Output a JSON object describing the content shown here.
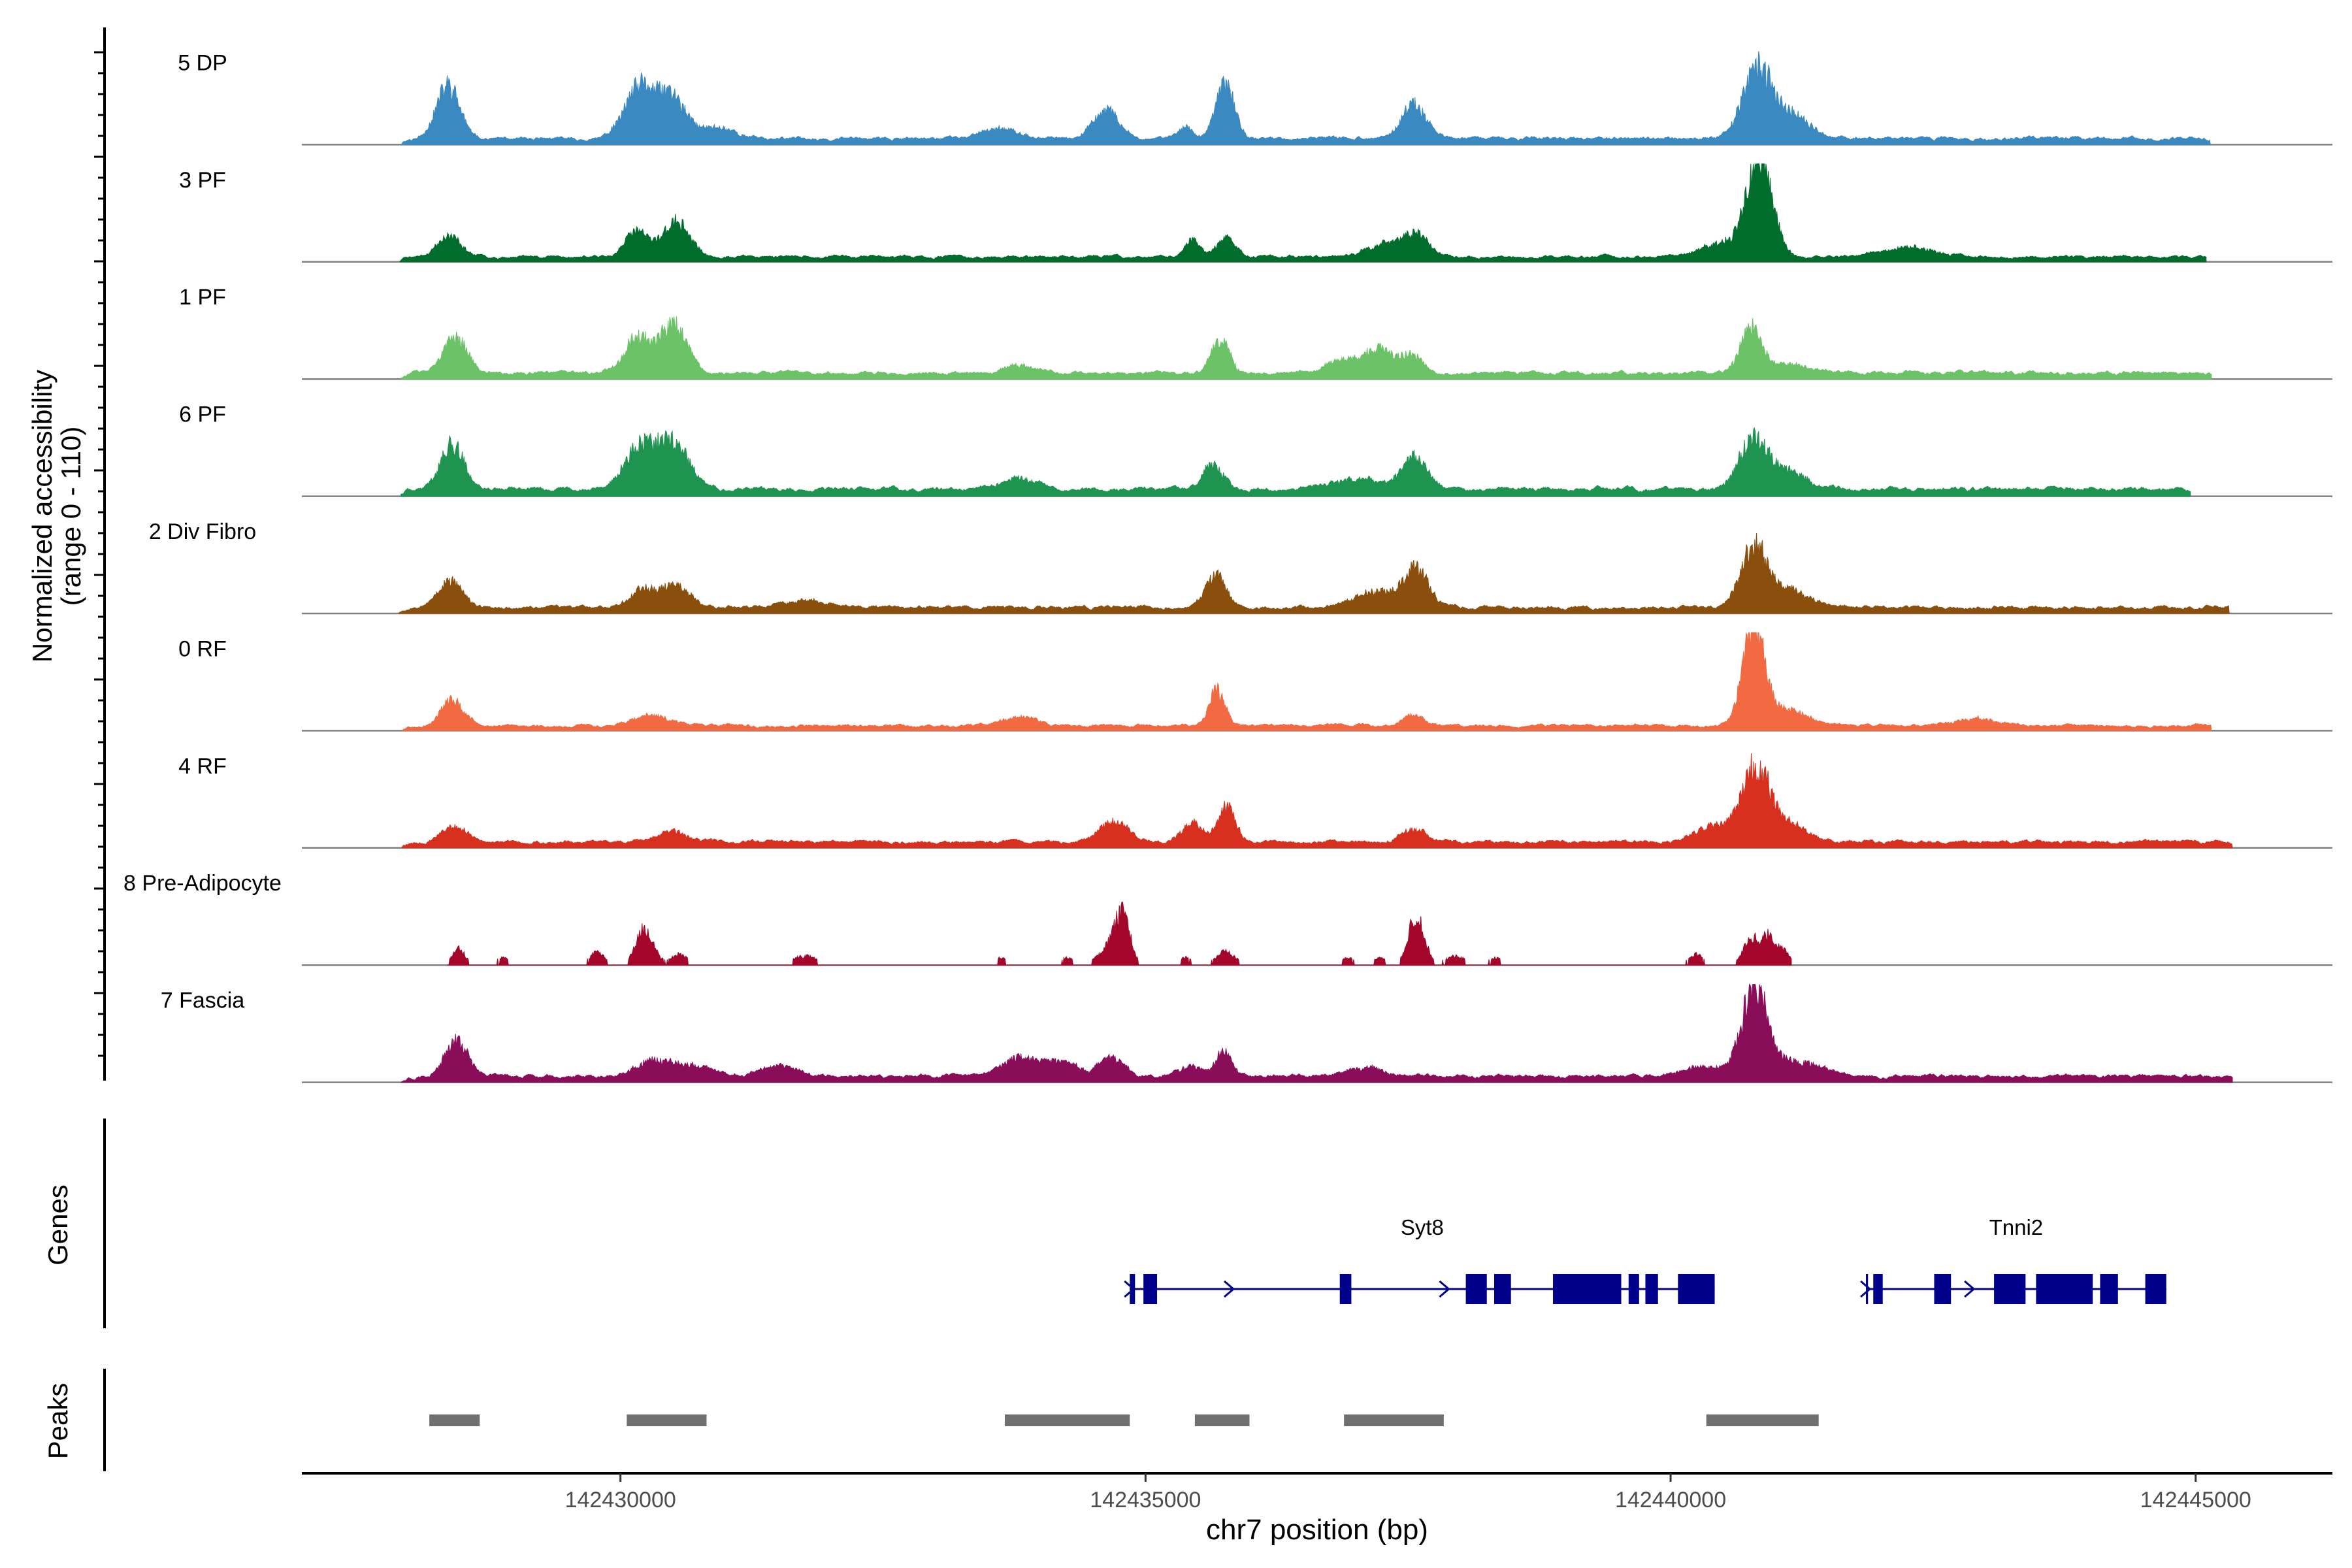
{
  "chart_data": {
    "type": "area",
    "ylabel_line1": "Normalized accessibility",
    "ylabel_line2": "(range 0 - 110)",
    "ylim": [
      0,
      110
    ],
    "x_range_bp": [
      142426966,
      142446302
    ],
    "xlabel": "chr7 position (bp)",
    "x_ticks": [
      "142430000",
      "142435000",
      "142440000",
      "142445000"
    ],
    "x_tick_values": [
      142430000,
      142435000,
      142440000,
      142445000
    ],
    "tracks": [
      {
        "name": "5 DP",
        "color": "#3a89c1",
        "extent": [
          142427910,
          142445140
        ],
        "peaks": [
          [
            142428360,
            60,
            110
          ],
          [
            142430180,
            55,
            140
          ],
          [
            142430480,
            45,
            130
          ],
          [
            142430900,
            12,
            180
          ],
          [
            142433600,
            12,
            160
          ],
          [
            142434620,
            32,
            120
          ],
          [
            142435380,
            12,
            70
          ],
          [
            142435760,
            62,
            85
          ],
          [
            142437560,
            38,
            110
          ],
          [
            142440830,
            75,
            140
          ],
          [
            142441150,
            25,
            180
          ]
        ],
        "noise": 6,
        "seed": 11
      },
      {
        "name": "3 PF",
        "color": "#006d2c",
        "extent": [
          142427900,
          142445100
        ],
        "peaks": [
          [
            142428370,
            22,
            110
          ],
          [
            142430150,
            28,
            110
          ],
          [
            142430530,
            38,
            130
          ],
          [
            142435450,
            20,
            80
          ],
          [
            142435770,
            22,
            80
          ],
          [
            142437330,
            15,
            200
          ],
          [
            142437580,
            20,
            110
          ],
          [
            142440500,
            15,
            200
          ],
          [
            142440850,
            110,
            120
          ],
          [
            142442300,
            10,
            250
          ]
        ],
        "noise": 5,
        "seed": 23
      },
      {
        "name": "1 PF",
        "color": "#6cc267",
        "extent": [
          142427910,
          142445150
        ],
        "peaks": [
          [
            142428430,
            40,
            110
          ],
          [
            142430180,
            40,
            140
          ],
          [
            142430520,
            50,
            120
          ],
          [
            142433800,
            10,
            160
          ],
          [
            142435720,
            38,
            85
          ],
          [
            142436920,
            15,
            200
          ],
          [
            142437250,
            22,
            140
          ],
          [
            142437550,
            18,
            100
          ],
          [
            142440760,
            48,
            100
          ],
          [
            142441100,
            10,
            220
          ]
        ],
        "noise": 6,
        "seed": 37
      },
      {
        "name": "6 PF",
        "color": "#1f9451",
        "extent": [
          142427910,
          142444950
        ],
        "peaks": [
          [
            142428400,
            50,
            110
          ],
          [
            142430180,
            45,
            140
          ],
          [
            142430500,
            50,
            150
          ],
          [
            142433800,
            12,
            160
          ],
          [
            142435650,
            25,
            100
          ],
          [
            142437000,
            12,
            220
          ],
          [
            142437560,
            35,
            120
          ],
          [
            142440780,
            52,
            130
          ],
          [
            142441100,
            20,
            200
          ]
        ],
        "noise": 7,
        "seed": 41
      },
      {
        "name": "2 Div Fibro",
        "color": "#8a4f0d",
        "extent": [
          142427890,
          142445320
        ],
        "peaks": [
          [
            142428380,
            30,
            110
          ],
          [
            142430210,
            20,
            130
          ],
          [
            142430530,
            25,
            130
          ],
          [
            142431800,
            8,
            200
          ],
          [
            142435670,
            35,
            100
          ],
          [
            142437200,
            18,
            220
          ],
          [
            142437580,
            40,
            120
          ],
          [
            142440790,
            65,
            120
          ],
          [
            142441100,
            20,
            200
          ]
        ],
        "noise": 6,
        "seed": 53
      },
      {
        "name": "0 RF",
        "color": "#f26a42",
        "extent": [
          142427920,
          142445150
        ],
        "peaks": [
          [
            142428400,
            28,
            100
          ],
          [
            142430300,
            10,
            180
          ],
          [
            142433800,
            10,
            160
          ],
          [
            142435680,
            40,
            75
          ],
          [
            142437550,
            12,
            100
          ],
          [
            142440790,
            110,
            100
          ],
          [
            142441100,
            18,
            200
          ],
          [
            142442900,
            8,
            200
          ]
        ],
        "noise": 5,
        "seed": 67
      },
      {
        "name": "4 RF",
        "color": "#d7301f",
        "extent": [
          142427920,
          142445350
        ],
        "peaks": [
          [
            142428420,
            18,
            110
          ],
          [
            142430500,
            12,
            130
          ],
          [
            142434690,
            22,
            140
          ],
          [
            142435450,
            22,
            100
          ],
          [
            142435780,
            40,
            80
          ],
          [
            142437550,
            14,
            120
          ],
          [
            142440400,
            18,
            160
          ],
          [
            142440810,
            80,
            130
          ],
          [
            142441100,
            20,
            180
          ]
        ],
        "noise": 6,
        "seed": 79
      },
      {
        "name": "8 Pre-Adipocyte",
        "color": "#a3062a",
        "extent": [
          142428350,
          142441150
        ],
        "peaks": [
          [
            142428460,
            18,
            60
          ],
          [
            142428880,
            8,
            70
          ],
          [
            142429780,
            15,
            70
          ],
          [
            142430230,
            40,
            85
          ],
          [
            142430560,
            12,
            80
          ],
          [
            142431760,
            10,
            120
          ],
          [
            142433620,
            8,
            60
          ],
          [
            142434250,
            8,
            60
          ],
          [
            142434660,
            18,
            110
          ],
          [
            142434780,
            50,
            70
          ],
          [
            142435380,
            8,
            60
          ],
          [
            142435760,
            15,
            90
          ],
          [
            142436930,
            8,
            60
          ],
          [
            142437230,
            8,
            60
          ],
          [
            142437580,
            55,
            75
          ],
          [
            142437950,
            10,
            100
          ],
          [
            142438330,
            8,
            70
          ],
          [
            142440240,
            12,
            70
          ],
          [
            142440760,
            28,
            70
          ],
          [
            142440920,
            28,
            70
          ],
          [
            142441060,
            15,
            80
          ]
        ],
        "noise": 0,
        "gap": 6,
        "seed": 83
      },
      {
        "name": "7 Fascia",
        "color": "#8a0d5a",
        "extent": [
          142427910,
          142445350
        ],
        "peaks": [
          [
            142428440,
            38,
            110
          ],
          [
            142430320,
            18,
            160
          ],
          [
            142430700,
            12,
            160
          ],
          [
            142431500,
            10,
            200
          ],
          [
            142433800,
            20,
            180
          ],
          [
            142434200,
            14,
            160
          ],
          [
            142434670,
            20,
            120
          ],
          [
            142435420,
            12,
            100
          ],
          [
            142435740,
            28,
            75
          ],
          [
            142437100,
            10,
            200
          ],
          [
            142440300,
            12,
            180
          ],
          [
            142440800,
            100,
            120
          ],
          [
            142441200,
            18,
            220
          ]
        ],
        "noise": 6,
        "seed": 97
      }
    ],
    "genes_label": "Genes",
    "genes": [
      {
        "name": "Syt8",
        "color": "#00008b",
        "start": 142434850,
        "end": 142440420,
        "exons": [
          [
            142434850,
            142434900
          ],
          [
            142434980,
            142435110
          ],
          [
            142436850,
            142436960
          ],
          [
            142438050,
            142438250
          ],
          [
            142438320,
            142438480
          ],
          [
            142438880,
            142439530
          ],
          [
            142439600,
            142439700
          ],
          [
            142439760,
            142439880
          ],
          [
            142440070,
            142440420
          ]
        ],
        "arrows": [
          142434850,
          142435800,
          142437850,
          142439820
        ]
      },
      {
        "name": "Tnni2",
        "color": "#00008b",
        "start": 142441860,
        "end": 142444720,
        "exons": [
          [
            142441860,
            142441880
          ],
          [
            142441930,
            142442020
          ],
          [
            142442510,
            142442670
          ],
          [
            142443080,
            142443380
          ],
          [
            142443480,
            142444020
          ],
          [
            142444090,
            142444260
          ],
          [
            142444520,
            142444720
          ]
        ],
        "arrows": [
          142441860,
          142442850
        ]
      }
    ],
    "peaks_label": "Peaks",
    "peak_color": "#707070",
    "peak_regions": [
      [
        142428180,
        142428660
      ],
      [
        142430060,
        142430820
      ],
      [
        142433660,
        142434850
      ],
      [
        142435470,
        142435990
      ],
      [
        142436890,
        142437840
      ],
      [
        142440340,
        142441410
      ]
    ]
  }
}
